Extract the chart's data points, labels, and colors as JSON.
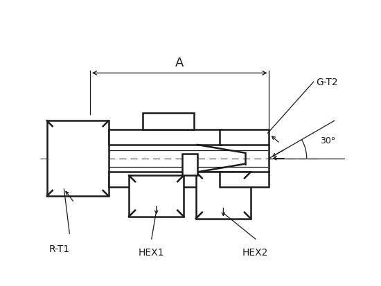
{
  "bg_color": "#ffffff",
  "line_color": "#1a1a1a",
  "dash_color": "#555555",
  "figsize": [
    5.5,
    4.14
  ],
  "dpi": 100,
  "labels": {
    "A": "A",
    "G_T2": "G-T2",
    "R_T1": "R-T1",
    "HEX1": "HEX1",
    "HEX2": "HEX2",
    "angle": "30°"
  },
  "lw_main": 1.8,
  "lw_thin": 0.9,
  "lw_dim": 0.9
}
